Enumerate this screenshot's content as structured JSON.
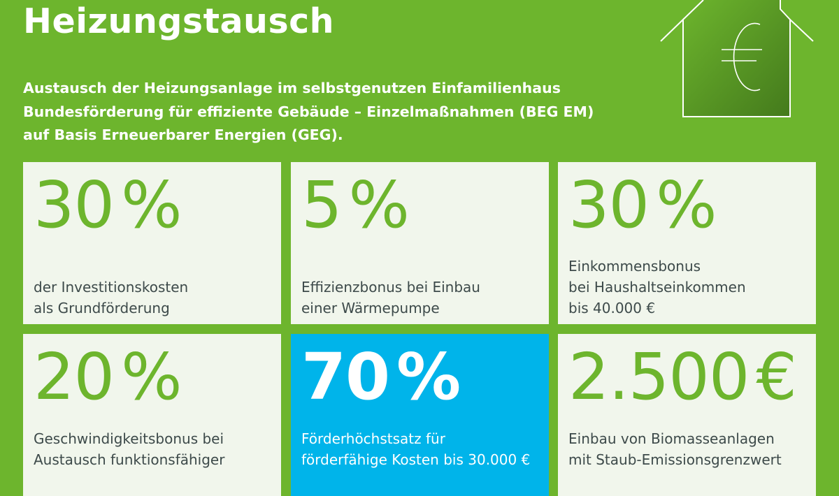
{
  "title": "Heizungstausch",
  "subtitle": [
    "Austausch der Heizungsanlage im selbstgenutzen Einfamilienhaus",
    "Bundesförderung für effiziente Gebäude – Einzelmaßnahmen (BEG EM)",
    "auf Basis Erneuerbarer Energien (GEG)."
  ],
  "icon": "house-euro-icon",
  "colors": {
    "background": "#6db52d",
    "card": "#f1f6ec",
    "highlight": "#00b4ea",
    "text": "#3d4a4a"
  },
  "cards": [
    {
      "value": "30",
      "unit": "%",
      "description": "der Investitionskosten\nals Grundförderung"
    },
    {
      "value": "5",
      "unit": "%",
      "description": "Effizienzbonus bei Einbau\neiner Wärmepumpe"
    },
    {
      "value": "30",
      "unit": "%",
      "description": "Einkommensbonus\nbei Haushaltseinkommen\nbis 40.000 €"
    },
    {
      "value": "20",
      "unit": "%",
      "description": "Geschwindigkeitsbonus bei\nAustausch funktionsfähiger"
    },
    {
      "value": "70",
      "unit": "%",
      "description": "Förderhöchstsatz für\nförderfähige Kosten bis 30.000 €"
    },
    {
      "value": "2.500",
      "unit": "€",
      "description": "Einbau von Biomasseanlagen\nmit Staub-Emissionsgrenzwert"
    }
  ]
}
